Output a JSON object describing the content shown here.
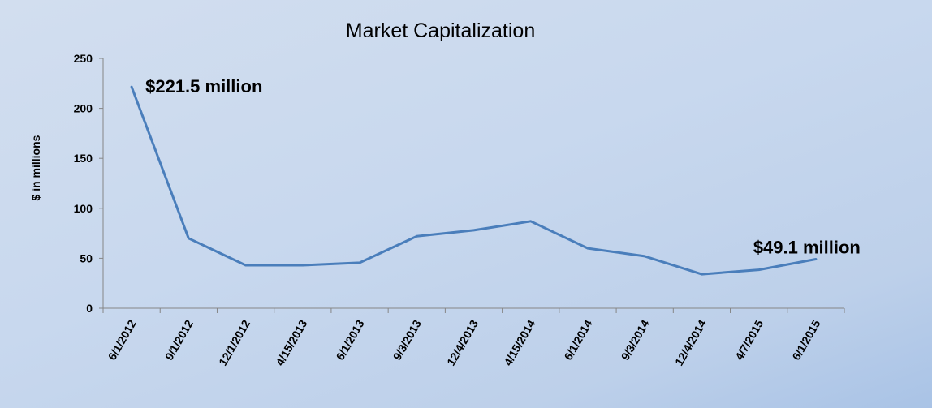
{
  "chart_data": {
    "type": "line",
    "title": "Market Capitalization",
    "xlabel": "",
    "ylabel": "$ in millions",
    "categories": [
      "6/1/2012",
      "9/1/2012",
      "12/1/2012",
      "4/15/2013",
      "6/1/2013",
      "9/3/2013",
      "12/4/2013",
      "4/15/2014",
      "6/1/2014",
      "9/3/2014",
      "12/4/2014",
      "4/7/2015",
      "6/1/2015"
    ],
    "series": [
      {
        "values": [
          221.5,
          70,
          43,
          43,
          45.5,
          72,
          78,
          87,
          60,
          52,
          34,
          38.5,
          49.1
        ],
        "color": "#4a7ebb"
      }
    ],
    "ylim": [
      0,
      250
    ],
    "yticks": [
      0,
      50,
      100,
      150,
      200,
      250
    ],
    "grid": false,
    "legend": "none",
    "annotations": [
      {
        "text": "$221.5 million",
        "point_index": 0
      },
      {
        "text": "$49.1 million",
        "point_index": 12
      }
    ]
  }
}
